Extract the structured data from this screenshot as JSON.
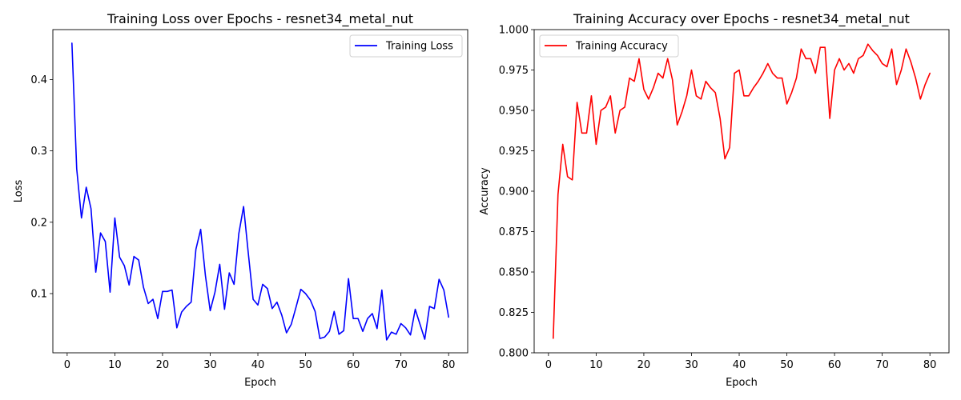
{
  "chart_data": [
    {
      "type": "line",
      "title": "Training Loss over Epochs - resnet34_metal_nut",
      "xlabel": "Epoch",
      "ylabel": "Loss",
      "xlim": [
        -3,
        84
      ],
      "ylim": [
        0.017,
        0.47
      ],
      "xticks": [
        0,
        10,
        20,
        30,
        40,
        50,
        60,
        70,
        80
      ],
      "yticks": [
        0.1,
        0.2,
        0.3,
        0.4
      ],
      "ytick_labels": [
        "0.1",
        "0.2",
        "0.3",
        "0.4"
      ],
      "legend_position": "upper-right",
      "grid": false,
      "series": [
        {
          "name": "Training Loss",
          "color": "#0000ff",
          "x": [
            1,
            2,
            3,
            4,
            5,
            6,
            7,
            8,
            9,
            10,
            11,
            12,
            13,
            14,
            15,
            16,
            17,
            18,
            19,
            20,
            21,
            22,
            23,
            24,
            25,
            26,
            27,
            28,
            29,
            30,
            31,
            32,
            33,
            34,
            35,
            36,
            37,
            38,
            39,
            40,
            41,
            42,
            43,
            44,
            45,
            46,
            47,
            48,
            49,
            50,
            51,
            52,
            53,
            54,
            55,
            56,
            57,
            58,
            59,
            60,
            61,
            62,
            63,
            64,
            65,
            66,
            67,
            68,
            69,
            70,
            71,
            72,
            73,
            74,
            75,
            76,
            77,
            78,
            79,
            80
          ],
          "values": [
            0.451,
            0.275,
            0.206,
            0.249,
            0.219,
            0.13,
            0.185,
            0.173,
            0.102,
            0.206,
            0.151,
            0.139,
            0.112,
            0.152,
            0.147,
            0.109,
            0.086,
            0.092,
            0.065,
            0.103,
            0.103,
            0.105,
            0.052,
            0.074,
            0.082,
            0.088,
            0.162,
            0.19,
            0.125,
            0.076,
            0.102,
            0.141,
            0.078,
            0.129,
            0.113,
            0.184,
            0.222,
            0.156,
            0.092,
            0.084,
            0.113,
            0.107,
            0.079,
            0.088,
            0.07,
            0.045,
            0.057,
            0.081,
            0.106,
            0.1,
            0.091,
            0.075,
            0.037,
            0.039,
            0.047,
            0.075,
            0.043,
            0.048,
            0.121,
            0.065,
            0.065,
            0.047,
            0.065,
            0.072,
            0.051,
            0.105,
            0.035,
            0.046,
            0.043,
            0.058,
            0.052,
            0.042,
            0.078,
            0.057,
            0.036,
            0.082,
            0.079,
            0.12,
            0.105,
            0.067
          ]
        }
      ]
    },
    {
      "type": "line",
      "title": "Training Accuracy over Epochs - resnet34_metal_nut",
      "xlabel": "Epoch",
      "ylabel": "Accuracy",
      "xlim": [
        -3,
        84
      ],
      "ylim": [
        0.8,
        1.0
      ],
      "xticks": [
        0,
        10,
        20,
        30,
        40,
        50,
        60,
        70,
        80
      ],
      "yticks": [
        0.8,
        0.825,
        0.85,
        0.875,
        0.9,
        0.925,
        0.95,
        0.975,
        1.0
      ],
      "ytick_labels": [
        "0.800",
        "0.825",
        "0.850",
        "0.875",
        "0.900",
        "0.925",
        "0.950",
        "0.975",
        "1.000"
      ],
      "legend_position": "upper-left",
      "grid": false,
      "series": [
        {
          "name": "Training Accuracy",
          "color": "#ff0000",
          "x": [
            1,
            2,
            3,
            4,
            5,
            6,
            7,
            8,
            9,
            10,
            11,
            12,
            13,
            14,
            15,
            16,
            17,
            18,
            19,
            20,
            21,
            22,
            23,
            24,
            25,
            26,
            27,
            28,
            29,
            30,
            31,
            32,
            33,
            34,
            35,
            36,
            37,
            38,
            39,
            40,
            41,
            42,
            43,
            44,
            45,
            46,
            47,
            48,
            49,
            50,
            51,
            52,
            53,
            54,
            55,
            56,
            57,
            58,
            59,
            60,
            61,
            62,
            63,
            64,
            65,
            66,
            67,
            68,
            69,
            70,
            71,
            72,
            73,
            74,
            75,
            76,
            77,
            78,
            79,
            80
          ],
          "values": [
            0.809,
            0.898,
            0.929,
            0.909,
            0.907,
            0.955,
            0.936,
            0.936,
            0.959,
            0.929,
            0.95,
            0.952,
            0.959,
            0.936,
            0.95,
            0.952,
            0.97,
            0.968,
            0.982,
            0.963,
            0.957,
            0.964,
            0.973,
            0.97,
            0.982,
            0.969,
            0.941,
            0.949,
            0.959,
            0.975,
            0.959,
            0.957,
            0.968,
            0.964,
            0.961,
            0.945,
            0.92,
            0.927,
            0.973,
            0.975,
            0.959,
            0.959,
            0.964,
            0.968,
            0.973,
            0.979,
            0.973,
            0.97,
            0.97,
            0.954,
            0.961,
            0.97,
            0.988,
            0.982,
            0.982,
            0.973,
            0.989,
            0.989,
            0.945,
            0.975,
            0.982,
            0.975,
            0.979,
            0.973,
            0.982,
            0.984,
            0.991,
            0.987,
            0.984,
            0.979,
            0.977,
            0.988,
            0.966,
            0.975,
            0.988,
            0.98,
            0.97,
            0.957,
            0.966,
            0.973
          ]
        }
      ]
    }
  ]
}
